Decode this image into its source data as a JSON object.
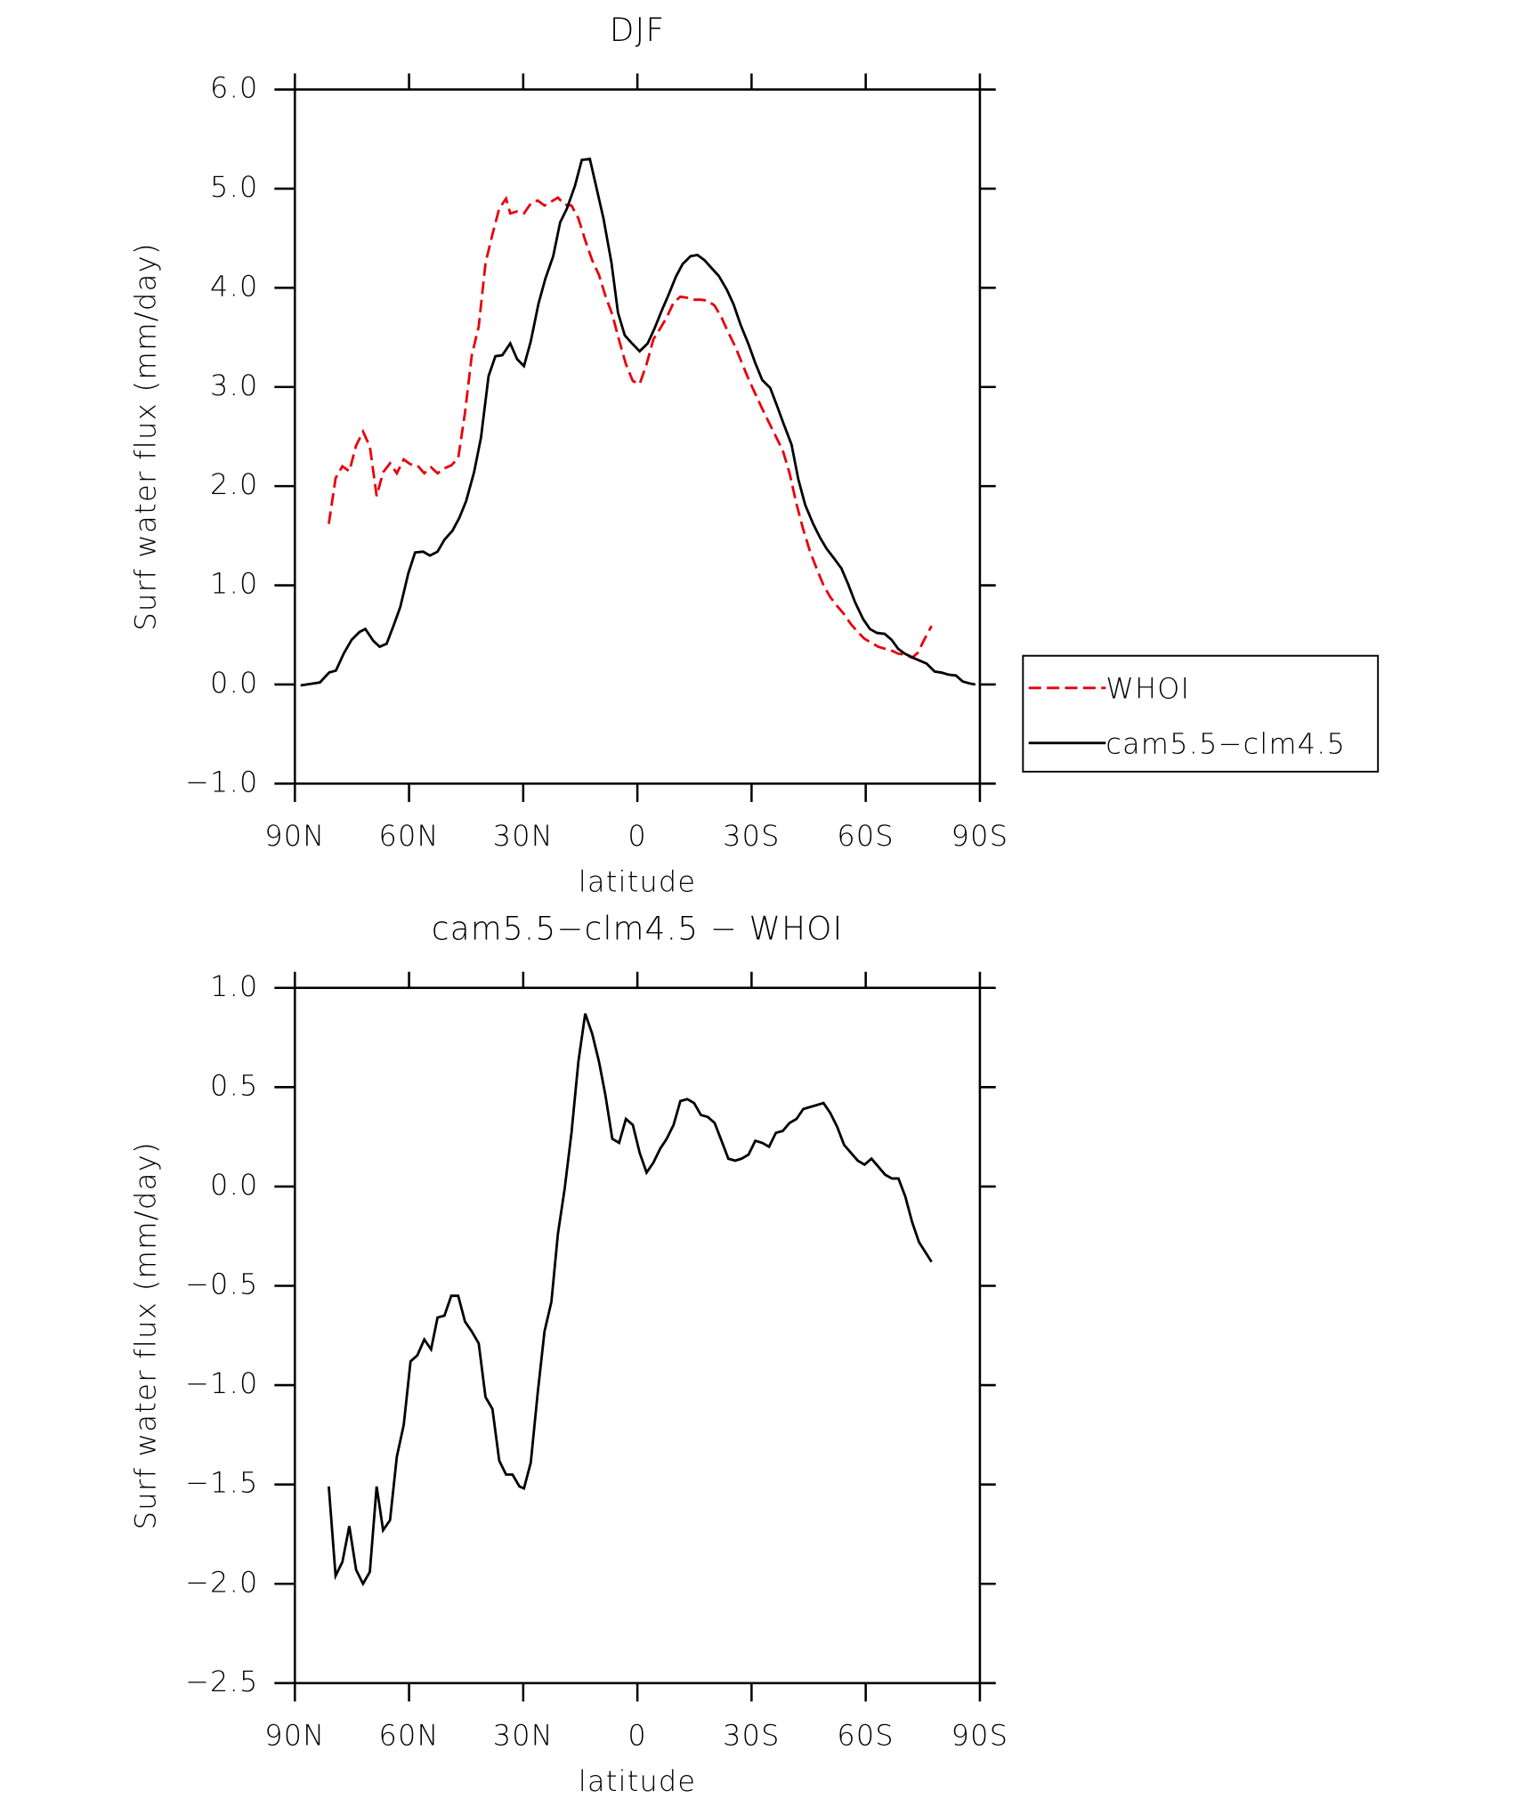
{
  "chart_data": [
    {
      "type": "line",
      "title": "DJF",
      "xlabel": "latitude",
      "ylabel": "Surf water flux (mm/day)",
      "xlim": [
        90,
        -90
      ],
      "xticks": [
        {
          "value": 90,
          "label": "90N"
        },
        {
          "value": 60,
          "label": "60N"
        },
        {
          "value": 30,
          "label": "30N"
        },
        0,
        {
          "value": -30,
          "label": "30S"
        },
        {
          "value": -60,
          "label": "60S"
        },
        {
          "value": -90,
          "label": "90S"
        }
      ],
      "ylim": [
        -1,
        6
      ],
      "yticks": [
        {
          "value": 6,
          "label": "6.0"
        },
        {
          "value": 5,
          "label": "5.0"
        },
        {
          "value": 4,
          "label": "4.0"
        },
        {
          "value": 3,
          "label": "3.0"
        },
        {
          "value": 2,
          "label": "2.0"
        },
        {
          "value": 1,
          "label": "1.0"
        },
        {
          "value": 0,
          "label": "0.0"
        },
        {
          "value": -1,
          "label": "−1.0"
        }
      ],
      "legend": "right",
      "series": [
        {
          "name": "WHOI",
          "color": "#e8000b",
          "dash": true,
          "x": [
            81.1,
            79.3,
            77.5,
            75.7,
            73.9,
            72.1,
            70.3,
            68.5,
            66.8,
            65.0,
            63.2,
            61.4,
            59.6,
            57.8,
            56.0,
            54.2,
            52.5,
            50.7,
            48.9,
            47.1,
            45.3,
            43.5,
            41.7,
            39.9,
            38.1,
            36.3,
            34.5,
            33.4,
            31.6,
            29.8,
            28.0,
            26.2,
            24.4,
            22.6,
            20.9,
            19.1,
            17.3,
            15.5,
            13.7,
            11.9,
            10.1,
            8.4,
            6.6,
            4.8,
            3.0,
            1.2,
            -0.6,
            -2.4,
            -4.2,
            -6.0,
            -7.7,
            -9.5,
            -11.3,
            -13.1,
            -14.9,
            -16.7,
            -18.5,
            -20.3,
            -22.1,
            -23.9,
            -25.7,
            -27.4,
            -29.2,
            -31.0,
            -32.8,
            -34.6,
            -36.4,
            -38.2,
            -40.0,
            -41.8,
            -43.6,
            -45.4,
            -47.1,
            -48.9,
            -50.7,
            -52.5,
            -54.3,
            -56.1,
            -57.9,
            -59.7,
            -61.5,
            -63.3,
            -65.1,
            -66.9,
            -68.6,
            -70.4,
            -72.2,
            -73.7,
            -75.5,
            -77.3
          ],
          "values": [
            1.62,
            2.08,
            2.2,
            2.15,
            2.41,
            2.55,
            2.4,
            1.9,
            2.14,
            2.23,
            2.13,
            2.27,
            2.22,
            2.21,
            2.13,
            2.19,
            2.13,
            2.18,
            2.21,
            2.28,
            2.74,
            3.32,
            3.61,
            4.25,
            4.54,
            4.8,
            4.9,
            4.75,
            4.77,
            4.75,
            4.85,
            4.88,
            4.83,
            4.87,
            4.91,
            4.84,
            4.83,
            4.7,
            4.48,
            4.28,
            4.13,
            3.92,
            3.73,
            3.47,
            3.23,
            3.06,
            3.03,
            3.23,
            3.48,
            3.59,
            3.7,
            3.85,
            3.91,
            3.9,
            3.88,
            3.88,
            3.87,
            3.82,
            3.7,
            3.55,
            3.41,
            3.25,
            3.08,
            2.93,
            2.78,
            2.64,
            2.5,
            2.36,
            2.13,
            1.82,
            1.56,
            1.34,
            1.17,
            1.0,
            0.88,
            0.79,
            0.71,
            0.61,
            0.53,
            0.46,
            0.42,
            0.38,
            0.36,
            0.34,
            0.31,
            0.3,
            0.27,
            0.32,
            0.46,
            0.59
          ]
        },
        {
          "name": "cam5.5−clm4.5",
          "color": "#000000",
          "x": [
            88.5,
            83.4,
            81.0,
            79.2,
            77.2,
            75.1,
            73.0,
            71.5,
            69.4,
            67.7,
            65.9,
            64.1,
            62.3,
            60.2,
            58.4,
            56.3,
            54.5,
            52.5,
            50.7,
            48.6,
            46.8,
            45.0,
            42.9,
            41.1,
            39.1,
            37.3,
            35.5,
            33.4,
            31.6,
            29.8,
            28.0,
            26.0,
            24.2,
            22.1,
            20.3,
            18.5,
            16.4,
            14.6,
            12.5,
            10.7,
            8.9,
            6.8,
            5.1,
            3.3,
            1.2,
            -0.6,
            -2.7,
            -4.5,
            -6.3,
            -8.3,
            -10.1,
            -11.9,
            -14.0,
            -15.8,
            -17.6,
            -19.7,
            -21.4,
            -23.5,
            -25.3,
            -27.1,
            -29.2,
            -31.0,
            -32.8,
            -34.9,
            -36.6,
            -38.4,
            -40.5,
            -42.3,
            -44.1,
            -46.2,
            -48.0,
            -49.7,
            -51.5,
            -53.6,
            -55.4,
            -57.2,
            -59.3,
            -61.1,
            -62.9,
            -65.0,
            -66.8,
            -68.5,
            -70.3,
            -72.4,
            -74.2,
            -76.0,
            -78.1,
            -79.9,
            -81.6,
            -83.7,
            -85.5,
            -87.3,
            -88.8
          ],
          "values": [
            -0.01,
            0.02,
            0.12,
            0.14,
            0.31,
            0.45,
            0.53,
            0.56,
            0.44,
            0.38,
            0.41,
            0.59,
            0.78,
            1.12,
            1.33,
            1.34,
            1.3,
            1.34,
            1.46,
            1.55,
            1.68,
            1.85,
            2.14,
            2.49,
            3.11,
            3.31,
            3.32,
            3.44,
            3.28,
            3.21,
            3.46,
            3.84,
            4.09,
            4.32,
            4.66,
            4.8,
            5.03,
            5.29,
            5.3,
            5.0,
            4.7,
            4.25,
            3.75,
            3.52,
            3.43,
            3.36,
            3.44,
            3.59,
            3.76,
            3.94,
            4.11,
            4.24,
            4.32,
            4.33,
            4.28,
            4.19,
            4.12,
            3.98,
            3.83,
            3.63,
            3.43,
            3.24,
            3.07,
            2.99,
            2.82,
            2.63,
            2.42,
            2.07,
            1.81,
            1.62,
            1.48,
            1.37,
            1.28,
            1.17,
            1.01,
            0.83,
            0.66,
            0.56,
            0.52,
            0.51,
            0.45,
            0.36,
            0.31,
            0.27,
            0.24,
            0.21,
            0.13,
            0.12,
            0.1,
            0.09,
            0.03,
            0.01,
            0.0
          ]
        }
      ]
    },
    {
      "type": "line",
      "title": "cam5.5−clm4.5 − WHOI",
      "xlabel": "latitude",
      "ylabel": "Surf water flux (mm/day)",
      "xlim": [
        90,
        -90
      ],
      "xticks": [
        {
          "value": 90,
          "label": "90N"
        },
        {
          "value": 60,
          "label": "60N"
        },
        {
          "value": 30,
          "label": "30N"
        },
        0,
        {
          "value": -30,
          "label": "30S"
        },
        {
          "value": -60,
          "label": "60S"
        },
        {
          "value": -90,
          "label": "90S"
        }
      ],
      "ylim": [
        -2.5,
        1
      ],
      "yticks": [
        {
          "value": 1,
          "label": "1.0"
        },
        0.5,
        {
          "value": 0,
          "label": "0.0"
        },
        {
          "value": -0.5,
          "label": "−0.5"
        },
        {
          "value": -1,
          "label": "−1.0"
        },
        {
          "value": -1.5,
          "label": "−1.5"
        },
        {
          "value": -2,
          "label": "−2.0"
        },
        {
          "value": -2.5,
          "label": "−2.5"
        }
      ],
      "series": [
        {
          "color": "#000000",
          "x": [
            81.1,
            79.3,
            77.5,
            75.7,
            73.9,
            72.1,
            70.3,
            68.5,
            66.8,
            65.0,
            63.2,
            61.4,
            59.6,
            57.8,
            56.0,
            54.2,
            52.5,
            50.7,
            48.9,
            47.1,
            45.3,
            43.5,
            41.7,
            39.9,
            38.1,
            36.3,
            34.5,
            32.8,
            31.0,
            29.8,
            28.0,
            26.2,
            24.4,
            22.6,
            20.9,
            19.1,
            17.3,
            15.5,
            13.7,
            11.9,
            10.1,
            8.4,
            6.6,
            4.8,
            3.0,
            1.2,
            -0.6,
            -2.4,
            -4.2,
            -6.0,
            -7.7,
            -9.5,
            -11.3,
            -13.1,
            -14.9,
            -16.7,
            -18.5,
            -20.3,
            -22.1,
            -23.9,
            -25.7,
            -27.4,
            -29.2,
            -31.0,
            -32.8,
            -34.6,
            -36.4,
            -38.2,
            -40.0,
            -41.8,
            -43.6,
            -45.4,
            -47.1,
            -48.9,
            -50.7,
            -52.5,
            -54.3,
            -56.1,
            -57.9,
            -59.7,
            -61.5,
            -63.3,
            -65.1,
            -66.9,
            -68.6,
            -70.4,
            -72.2,
            -74.0,
            -77.3
          ],
          "values": [
            -1.51,
            -1.96,
            -1.89,
            -1.71,
            -1.93,
            -2.0,
            -1.94,
            -1.51,
            -1.73,
            -1.68,
            -1.36,
            -1.2,
            -0.88,
            -0.85,
            -0.77,
            -0.82,
            -0.66,
            -0.65,
            -0.55,
            -0.55,
            -0.68,
            -0.73,
            -0.79,
            -1.06,
            -1.12,
            -1.38,
            -1.45,
            -1.45,
            -1.51,
            -1.52,
            -1.39,
            -1.04,
            -0.73,
            -0.58,
            -0.24,
            -0.01,
            0.27,
            0.63,
            0.87,
            0.77,
            0.63,
            0.46,
            0.24,
            0.22,
            0.34,
            0.31,
            0.17,
            0.07,
            0.12,
            0.19,
            0.24,
            0.31,
            0.43,
            0.44,
            0.42,
            0.36,
            0.35,
            0.32,
            0.23,
            0.14,
            0.13,
            0.14,
            0.16,
            0.23,
            0.22,
            0.2,
            0.27,
            0.28,
            0.32,
            0.34,
            0.39,
            0.4,
            0.41,
            0.42,
            0.37,
            0.3,
            0.21,
            0.17,
            0.13,
            0.11,
            0.14,
            0.1,
            0.06,
            0.04,
            0.04,
            -0.05,
            -0.18,
            -0.28,
            -0.38
          ]
        }
      ]
    }
  ]
}
